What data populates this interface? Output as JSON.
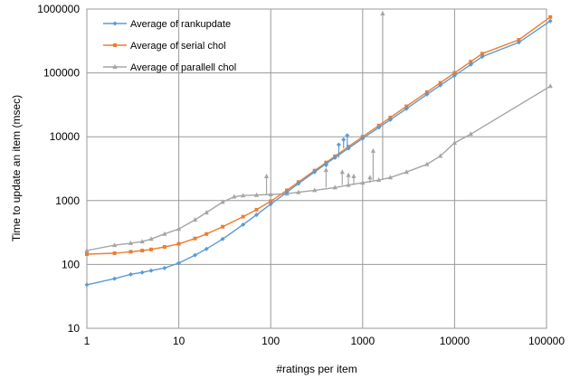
{
  "chart_data": {
    "type": "line",
    "title": "",
    "xlabel": "#ratings per item",
    "ylabel": "Time to update an item (msec)",
    "xscale": "log",
    "yscale": "log",
    "xlim": [
      1,
      100000
    ],
    "ylim": [
      10,
      1000000
    ],
    "xticks": [
      "1",
      "10",
      "100",
      "1000",
      "10000",
      "100000"
    ],
    "yticks": [
      "10",
      "100",
      "1000",
      "10000",
      "100000",
      "1000000"
    ],
    "grid": true,
    "legend_position": "top-left",
    "series": [
      {
        "name": "Average of rankupdate",
        "color": "#5B9BD5",
        "marker": "diamond",
        "points": [
          [
            1,
            48
          ],
          [
            2,
            60
          ],
          [
            3,
            70
          ],
          [
            4,
            75
          ],
          [
            5,
            80
          ],
          [
            7,
            88
          ],
          [
            10,
            105
          ],
          [
            15,
            140
          ],
          [
            20,
            175
          ],
          [
            30,
            250
          ],
          [
            50,
            420
          ],
          [
            70,
            600
          ],
          [
            100,
            880
          ],
          [
            150,
            1350
          ],
          [
            200,
            1850
          ],
          [
            300,
            2800
          ],
          [
            400,
            3800
          ],
          [
            500,
            4700
          ],
          [
            700,
            6600
          ],
          [
            1000,
            9400
          ],
          [
            1500,
            14000
          ],
          [
            2000,
            18500
          ],
          [
            3000,
            27500
          ],
          [
            5000,
            46000
          ],
          [
            7000,
            64000
          ],
          [
            10000,
            91000
          ],
          [
            15000,
            135000
          ],
          [
            20000,
            180000
          ],
          [
            50000,
            300000
          ],
          [
            110000,
            650000
          ]
        ],
        "spikes": [
          [
            400,
            3600
          ],
          [
            550,
            7500
          ],
          [
            620,
            9000
          ],
          [
            680,
            10500
          ]
        ]
      },
      {
        "name": "Average of serial chol",
        "color": "#ED7D31",
        "marker": "square",
        "points": [
          [
            1,
            145
          ],
          [
            2,
            150
          ],
          [
            3,
            158
          ],
          [
            4,
            165
          ],
          [
            5,
            172
          ],
          [
            7,
            188
          ],
          [
            10,
            210
          ],
          [
            15,
            255
          ],
          [
            20,
            300
          ],
          [
            30,
            390
          ],
          [
            50,
            560
          ],
          [
            70,
            720
          ],
          [
            100,
            980
          ],
          [
            150,
            1450
          ],
          [
            200,
            1950
          ],
          [
            300,
            2950
          ],
          [
            400,
            3950
          ],
          [
            500,
            4950
          ],
          [
            700,
            7000
          ],
          [
            1000,
            10000
          ],
          [
            1500,
            15000
          ],
          [
            2000,
            20000
          ],
          [
            3000,
            30000
          ],
          [
            5000,
            50000
          ],
          [
            7000,
            70000
          ],
          [
            10000,
            100000
          ],
          [
            15000,
            150000
          ],
          [
            20000,
            200000
          ],
          [
            50000,
            330000
          ],
          [
            110000,
            750000
          ]
        ],
        "spikes": []
      },
      {
        "name": "Average of parallell chol",
        "color": "#A5A5A5",
        "marker": "triangle",
        "points": [
          [
            1,
            165
          ],
          [
            2,
            200
          ],
          [
            3,
            215
          ],
          [
            4,
            228
          ],
          [
            5,
            250
          ],
          [
            7,
            300
          ],
          [
            10,
            360
          ],
          [
            15,
            500
          ],
          [
            20,
            650
          ],
          [
            30,
            950
          ],
          [
            40,
            1150
          ],
          [
            50,
            1200
          ],
          [
            70,
            1220
          ],
          [
            100,
            1250
          ],
          [
            150,
            1280
          ],
          [
            200,
            1350
          ],
          [
            300,
            1450
          ],
          [
            500,
            1600
          ],
          [
            700,
            1750
          ],
          [
            1000,
            1900
          ],
          [
            1500,
            2100
          ],
          [
            2000,
            2300
          ],
          [
            3000,
            2800
          ],
          [
            5000,
            3700
          ],
          [
            7000,
            5000
          ],
          [
            10000,
            8000
          ],
          [
            15000,
            11000
          ],
          [
            110000,
            62000
          ]
        ],
        "spikes": [
          [
            90,
            2400
          ],
          [
            400,
            3000
          ],
          [
            600,
            2800
          ],
          [
            700,
            2500
          ],
          [
            800,
            2400
          ],
          [
            1200,
            2300
          ],
          [
            1300,
            6000
          ],
          [
            1650,
            850000
          ]
        ]
      }
    ]
  }
}
